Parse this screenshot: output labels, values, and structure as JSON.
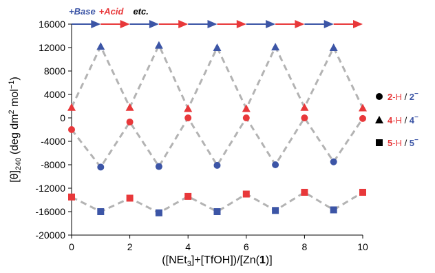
{
  "colors": {
    "red": "#e8383a",
    "blue": "#3c55a6",
    "dash": "#b3b3b3",
    "black": "#000000"
  },
  "chart_data": {
    "type": "scatter",
    "xlabel_parts": [
      "([NEt",
      "3",
      "]+[TfOH])/[Zn(",
      "1",
      ")]"
    ],
    "ylabel_parts": [
      "[θ]",
      "240",
      " (deg dm",
      "2",
      " mol",
      "−1",
      ")"
    ],
    "xlim": [
      0,
      10
    ],
    "ylim": [
      -20000,
      16000
    ],
    "xticks": [
      0,
      2,
      4,
      6,
      8,
      10
    ],
    "yticks": [
      16000,
      12000,
      8000,
      4000,
      0,
      -4000,
      -8000,
      -12000,
      -16000,
      -20000
    ],
    "top_annotation": {
      "base": "+Base",
      "acid": "+Acid",
      "etc": "etc."
    },
    "arrows_y": 16000,
    "arrow_segments": [
      [
        0,
        1,
        "blue"
      ],
      [
        1,
        2,
        "red"
      ],
      [
        2,
        3,
        "blue"
      ],
      [
        3,
        4,
        "red"
      ],
      [
        4,
        5,
        "blue"
      ],
      [
        5,
        6,
        "red"
      ],
      [
        6,
        7,
        "blue"
      ],
      [
        7,
        8,
        "red"
      ],
      [
        8,
        9,
        "blue"
      ],
      [
        9,
        10,
        "red"
      ]
    ],
    "series": [
      {
        "marker": "circle",
        "legend": {
          "a": "2",
          "a_suffix": "-H",
          "sep": " / ",
          "b": "2",
          "b_sup": "−"
        },
        "x": [
          0,
          1,
          2,
          3,
          4,
          5,
          6,
          7,
          8,
          9,
          10
        ],
        "y": [
          -2000,
          -8400,
          -700,
          -8300,
          0,
          -8100,
          0,
          -8000,
          0,
          -7500,
          -100
        ]
      },
      {
        "marker": "triangle",
        "legend": {
          "a": "4",
          "a_suffix": "-H",
          "sep": " / ",
          "b": "4",
          "b_sup": "−"
        },
        "x": [
          0,
          1,
          2,
          3,
          4,
          5,
          6,
          7,
          8,
          9,
          10
        ],
        "y": [
          1800,
          12200,
          1800,
          12400,
          1600,
          12000,
          1600,
          12100,
          1800,
          12000,
          1700
        ]
      },
      {
        "marker": "square",
        "legend": {
          "a": "5",
          "a_suffix": "-H",
          "sep": " / ",
          "b": "5",
          "b_sup": "−"
        },
        "x": [
          0,
          1,
          2,
          3,
          4,
          5,
          6,
          7,
          8,
          9,
          10
        ],
        "y": [
          -13500,
          -16000,
          -13700,
          -16200,
          -13400,
          -16000,
          -13000,
          -15800,
          -12700,
          -15700,
          -12700
        ]
      }
    ]
  }
}
